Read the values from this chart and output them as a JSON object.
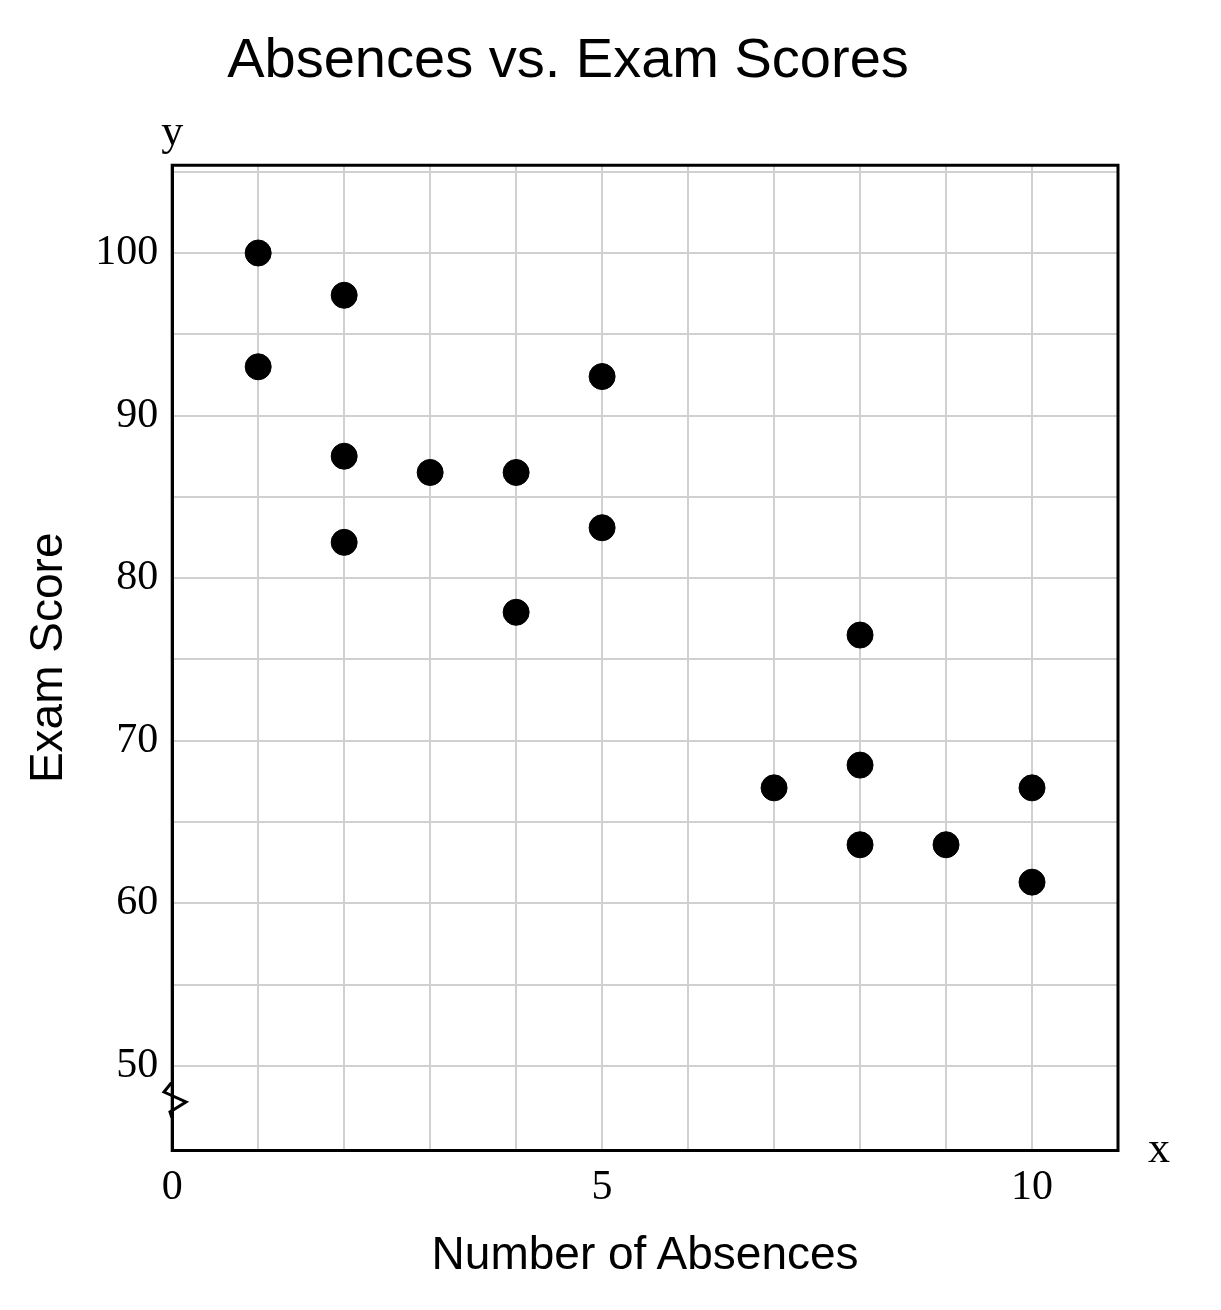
{
  "chart_data": {
    "type": "scatter",
    "title": "Absences vs. Exam Scores",
    "xlabel": "Number of Absences",
    "ylabel": "Exam Score",
    "annotations": [
      "y",
      "x"
    ],
    "series": [
      {
        "color": "#000000",
        "x": [
          1,
          1,
          2,
          2,
          2,
          3,
          4,
          4,
          5,
          5,
          7,
          8,
          8,
          8,
          9,
          10,
          10
        ],
        "values": [
          100,
          93,
          97.4,
          87.5,
          82.2,
          86.5,
          86.5,
          77.9,
          92.4,
          83.1,
          67.1,
          76.5,
          68.5,
          63.6,
          63.6,
          67.1,
          61.3
        ]
      }
    ],
    "xlim": [
      0,
      11
    ],
    "xticks": [
      0,
      {
        "value": 1,
        "label": null
      },
      {
        "value": 2,
        "label": null
      },
      {
        "value": 3,
        "label": null
      },
      {
        "value": 4,
        "label": null
      },
      5,
      {
        "value": 6,
        "label": null
      },
      {
        "value": 7,
        "label": null
      },
      {
        "value": 8,
        "label": null
      },
      {
        "value": 9,
        "label": null
      },
      10,
      {
        "value": 11,
        "label": null
      }
    ],
    "ylim": [
      44.8,
      105.4
    ],
    "yticks": [
      50,
      {
        "value": 55,
        "label": null
      },
      60,
      {
        "value": 65,
        "label": null
      },
      70,
      {
        "value": 75,
        "label": null
      },
      80,
      {
        "value": 85,
        "label": null
      },
      90,
      {
        "value": 95,
        "label": null
      },
      100,
      {
        "value": 105,
        "label": null
      }
    ],
    "grid": true,
    "legend": false,
    "marker": "circle"
  }
}
